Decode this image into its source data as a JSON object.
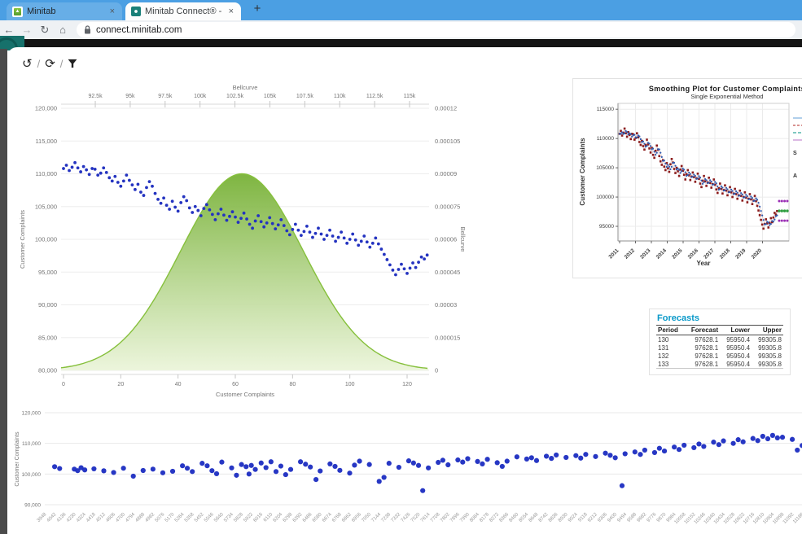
{
  "browser": {
    "tabs": [
      {
        "label": "Minitab",
        "close": "×"
      },
      {
        "label": "Minitab Connect® - connect.min",
        "close": "×"
      }
    ],
    "new_tab": "+",
    "nav": {
      "back": "←",
      "forward": "→",
      "reload": "↻",
      "home": "⌂"
    },
    "url": "connect.minitab.com"
  },
  "toolbar": {
    "separator": "/",
    "icons": [
      {
        "name": "history",
        "glyph": "↺"
      },
      {
        "name": "refresh",
        "glyph": "⟳"
      },
      {
        "name": "filter",
        "glyph": "funnel"
      }
    ]
  },
  "forecasts": {
    "title": "Forecasts",
    "accent_color": "#0a99c9",
    "columns": [
      "Period",
      "Forecast",
      "Lower",
      "Upper"
    ],
    "rows": [
      [
        "130",
        "97628.1",
        "95950.4",
        "99305.8"
      ],
      [
        "131",
        "97628.1",
        "95950.4",
        "99305.8"
      ],
      [
        "132",
        "97628.1",
        "95950.4",
        "99305.8"
      ],
      [
        "133",
        "97628.1",
        "95950.4",
        "99305.8"
      ]
    ]
  },
  "chart_data": [
    {
      "type": "scatter+area",
      "name": "customer-complaints-bellcurve-combo",
      "top_axis": {
        "label": "Bellcurve",
        "min": 90050,
        "max": 116400,
        "ticks": [
          {
            "v": 92500,
            "label": "92.5k"
          },
          {
            "v": 95000,
            "label": "95k"
          },
          {
            "v": 97500,
            "label": "97.5k"
          },
          {
            "v": 100000,
            "label": "100k"
          },
          {
            "v": 102500,
            "label": "102.5k"
          },
          {
            "v": 105000,
            "label": "105k"
          },
          {
            "v": 107500,
            "label": "107.5k"
          },
          {
            "v": 110000,
            "label": "110k"
          },
          {
            "v": 112500,
            "label": "112.5k"
          },
          {
            "v": 115000,
            "label": "115k"
          }
        ]
      },
      "left_axis": {
        "label": "Customer Complaints",
        "ticks": [
          {
            "v": 120000,
            "label": "120,000"
          },
          {
            "v": 115000,
            "label": "115,000"
          },
          {
            "v": 110000,
            "label": "110,000"
          },
          {
            "v": 105000,
            "label": "105,000"
          },
          {
            "v": 100000,
            "label": "100,000"
          },
          {
            "v": 95000,
            "label": "95,000"
          },
          {
            "v": 90000,
            "label": "90,000"
          },
          {
            "v": 85000,
            "label": "85,000"
          },
          {
            "v": 80000,
            "label": "80,000"
          }
        ]
      },
      "right_axis": {
        "label": "Bellcurve",
        "ticks": [
          {
            "v": 0.00012,
            "label": "0.00012"
          },
          {
            "v": 0.000105,
            "label": "0.000105"
          },
          {
            "v": 9e-05,
            "label": "0.00009"
          },
          {
            "v": 7.5e-05,
            "label": "0.000075"
          },
          {
            "v": 6e-05,
            "label": "0.00006"
          },
          {
            "v": 4.5e-05,
            "label": "0.000045"
          },
          {
            "v": 3e-05,
            "label": "0.00003"
          },
          {
            "v": 1.5e-05,
            "label": "0.000015"
          },
          {
            "v": 0,
            "label": "0"
          }
        ]
      },
      "bottom_axis": {
        "label": "Customer Complaints",
        "ticks": [
          0,
          20,
          40,
          60,
          80,
          100,
          120
        ],
        "max": 128
      },
      "bellcurve": {
        "mean": 103000,
        "sd": 4400,
        "peak": 9e-05,
        "stroke": "#86c03c",
        "fill_top": "#79b239",
        "fill_bottom": "#eaf4d8"
      },
      "scatter": {
        "color": "#2433c0",
        "values": [
          110800,
          111300,
          110500,
          111000,
          111700,
          110900,
          110300,
          111100,
          110600,
          109900,
          110800,
          110700,
          109800,
          110100,
          110900,
          110200,
          109400,
          108900,
          109600,
          108700,
          108100,
          108900,
          109800,
          109000,
          108300,
          107600,
          108400,
          107200,
          106700,
          107900,
          108800,
          108100,
          107000,
          106100,
          105500,
          106300,
          105200,
          104600,
          105800,
          104900,
          104300,
          105600,
          106500,
          105900,
          104800,
          104100,
          105000,
          104400,
          103600,
          104700,
          105300,
          104500,
          103800,
          103000,
          103900,
          104600,
          103700,
          102900,
          103500,
          104200,
          103400,
          102600,
          103200,
          104000,
          103100,
          102300,
          101700,
          102800,
          103600,
          102700,
          101900,
          102500,
          103300,
          102400,
          101600,
          102200,
          103000,
          102100,
          101300,
          100700,
          101500,
          102300,
          101400,
          100600,
          101200,
          102000,
          101100,
          100300,
          100900,
          101700,
          100800,
          100000,
          100600,
          101400,
          100500,
          99700,
          100300,
          101100,
          100200,
          99400,
          100000,
          100800,
          99900,
          99100,
          99700,
          100500,
          99600,
          98800,
          99400,
          100200,
          99300,
          98500,
          97700,
          96900,
          96100,
          95300,
          94600,
          95400,
          96200,
          95500,
          94800,
          95600,
          96400,
          95700,
          96500,
          97300,
          97000,
          97600
        ]
      }
    },
    {
      "type": "line+scatter",
      "name": "smoothing-plot",
      "title": "Smoothing Plot for Customer Complaints",
      "subtitle": "Single Exponential Method",
      "xlabel": "Year",
      "ylabel": "Customer Complaints",
      "x_ticks": [
        2011,
        2012,
        2013,
        2014,
        2015,
        2016,
        2017,
        2018,
        2019,
        2020
      ],
      "y_ticks": [
        {
          "v": 95000,
          "label": "95000"
        },
        {
          "v": 100000,
          "label": "100000"
        },
        {
          "v": 105000,
          "label": "105000"
        },
        {
          "v": 110000,
          "label": "110000"
        },
        {
          "v": 115000,
          "label": "115000"
        }
      ],
      "actual_color": "#8c1c1c",
      "fits_color": "#2f5bb0",
      "line_color": "#ddc3c3",
      "forecast": {
        "value": 97628.1,
        "lower": 95950.4,
        "upper": 99305.8,
        "forecast_color": "#2f9e41",
        "pi_color": "#9b30b5"
      },
      "legend_fragments": [
        "S",
        "A"
      ],
      "legend_symbol_colors": [
        "#7bafdd",
        "#c0504d",
        "#35a79c",
        "#c58ad0"
      ]
    },
    {
      "type": "scatter",
      "name": "customer-complaints-by-id",
      "ylabel": "Customer Complaints",
      "y_ticks": [
        {
          "v": 120000,
          "label": "120,000"
        },
        {
          "v": 110000,
          "label": "110,000"
        },
        {
          "v": 100000,
          "label": "100,000"
        },
        {
          "v": 90000,
          "label": "90,000"
        }
      ],
      "x_labels": {
        "start": 3948,
        "step": 94,
        "count": 78
      },
      "point_color": "#1b2cc1",
      "points": [
        [
          4042,
          102400
        ],
        [
          4090,
          101800
        ],
        [
          4230,
          101600
        ],
        [
          4262,
          101100
        ],
        [
          4295,
          102050
        ],
        [
          4330,
          101350
        ],
        [
          4418,
          101700
        ],
        [
          4512,
          101050
        ],
        [
          4606,
          100500
        ],
        [
          4700,
          101900
        ],
        [
          4794,
          99300
        ],
        [
          4888,
          101150
        ],
        [
          4982,
          101600
        ],
        [
          5076,
          100400
        ],
        [
          5170,
          100900
        ],
        [
          5264,
          102700
        ],
        [
          5310,
          101900
        ],
        [
          5358,
          100800
        ],
        [
          5452,
          103500
        ],
        [
          5500,
          102700
        ],
        [
          5546,
          101100
        ],
        [
          5590,
          100100
        ],
        [
          5640,
          103900
        ],
        [
          5734,
          102000
        ],
        [
          5780,
          99600
        ],
        [
          5828,
          103100
        ],
        [
          5872,
          102400
        ],
        [
          5900,
          100000
        ],
        [
          5922,
          102800
        ],
        [
          5960,
          101500
        ],
        [
          6016,
          103600
        ],
        [
          6062,
          102100
        ],
        [
          6110,
          104000
        ],
        [
          6158,
          100800
        ],
        [
          6204,
          102600
        ],
        [
          6250,
          99800
        ],
        [
          6298,
          101500
        ],
        [
          6392,
          104000
        ],
        [
          6440,
          103200
        ],
        [
          6486,
          102300
        ],
        [
          6540,
          98200
        ],
        [
          6580,
          101000
        ],
        [
          6674,
          103300
        ],
        [
          6722,
          102500
        ],
        [
          6768,
          101200
        ],
        [
          6862,
          100300
        ],
        [
          6908,
          102900
        ],
        [
          6956,
          104200
        ],
        [
          7050,
          103100
        ],
        [
          7144,
          97600
        ],
        [
          7190,
          98900
        ],
        [
          7238,
          103500
        ],
        [
          7332,
          102200
        ],
        [
          7426,
          104300
        ],
        [
          7472,
          103600
        ],
        [
          7520,
          102800
        ],
        [
          7560,
          94600
        ],
        [
          7614,
          102000
        ],
        [
          7708,
          103800
        ],
        [
          7752,
          104500
        ],
        [
          7802,
          103000
        ],
        [
          7896,
          104600
        ],
        [
          7942,
          103900
        ],
        [
          7990,
          105000
        ],
        [
          8084,
          104100
        ],
        [
          8130,
          103300
        ],
        [
          8178,
          104800
        ],
        [
          8272,
          103700
        ],
        [
          8320,
          102500
        ],
        [
          8366,
          104200
        ],
        [
          8460,
          105600
        ],
        [
          8554,
          104900
        ],
        [
          8600,
          105300
        ],
        [
          8648,
          104400
        ],
        [
          8742,
          105800
        ],
        [
          8790,
          105100
        ],
        [
          8836,
          106200
        ],
        [
          8930,
          105400
        ],
        [
          9024,
          106000
        ],
        [
          9070,
          105200
        ],
        [
          9118,
          106400
        ],
        [
          9212,
          105700
        ],
        [
          9306,
          106800
        ],
        [
          9352,
          106100
        ],
        [
          9400,
          105300
        ],
        [
          9465,
          96200
        ],
        [
          9494,
          106600
        ],
        [
          9588,
          107200
        ],
        [
          9640,
          106400
        ],
        [
          9682,
          107800
        ],
        [
          9776,
          107000
        ],
        [
          9822,
          108400
        ],
        [
          9870,
          107500
        ],
        [
          9964,
          108800
        ],
        [
          10010,
          108000
        ],
        [
          10058,
          109400
        ],
        [
          10152,
          108600
        ],
        [
          10200,
          109800
        ],
        [
          10246,
          109000
        ],
        [
          10340,
          110400
        ],
        [
          10390,
          109600
        ],
        [
          10434,
          110800
        ],
        [
          10528,
          110000
        ],
        [
          10575,
          111200
        ],
        [
          10622,
          110500
        ],
        [
          10716,
          111600
        ],
        [
          10762,
          110900
        ],
        [
          10810,
          112300
        ],
        [
          10858,
          111500
        ],
        [
          10904,
          112600
        ],
        [
          10950,
          111800
        ],
        [
          10998,
          112000
        ],
        [
          11092,
          111300
        ],
        [
          11140,
          107800
        ],
        [
          11186,
          109300
        ],
        [
          11230,
          106500
        ]
      ]
    }
  ]
}
